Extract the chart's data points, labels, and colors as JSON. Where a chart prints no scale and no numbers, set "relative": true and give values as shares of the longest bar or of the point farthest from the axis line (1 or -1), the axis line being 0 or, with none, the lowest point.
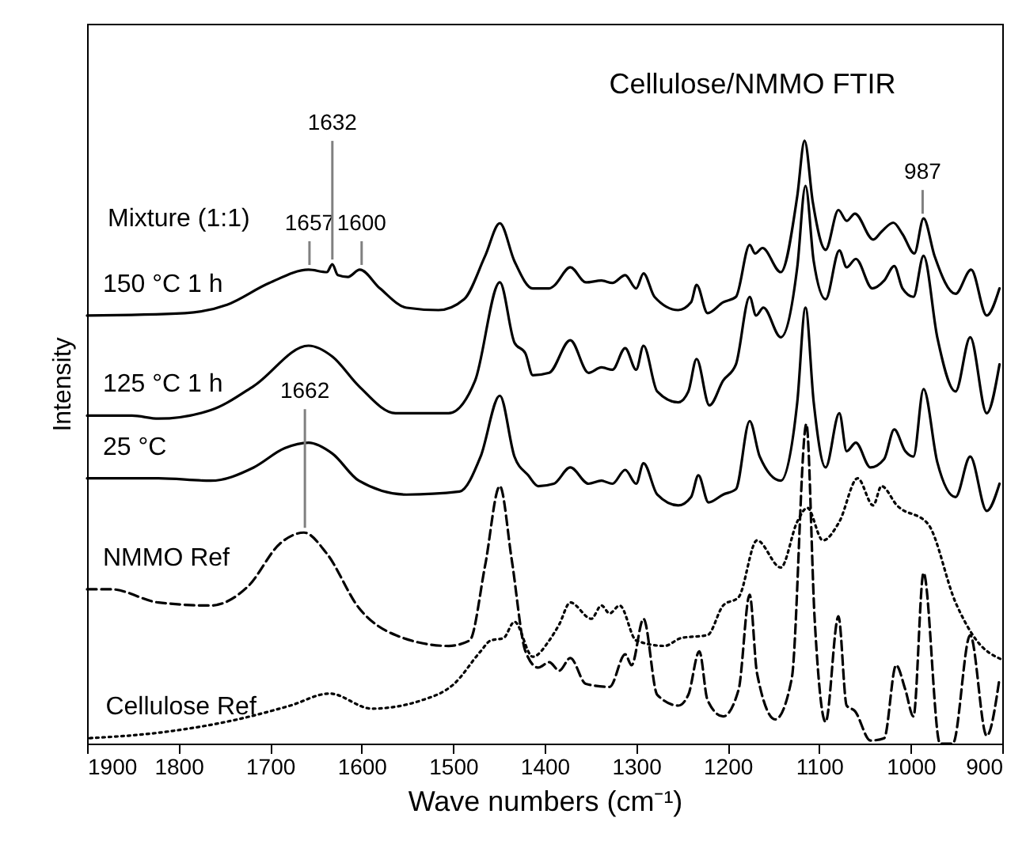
{
  "chart_data": {
    "type": "line",
    "title": "Cellulose/NMMO FTIR",
    "xlabel": "Wave numbers (cm⁻¹)",
    "ylabel": "Intensity",
    "relative": true,
    "grid": false,
    "xlim": [
      1900,
      900
    ],
    "xticks": [
      1900,
      1800,
      1700,
      1600,
      1500,
      1400,
      1300,
      1200,
      1100,
      1000,
      900
    ],
    "series": [
      {
        "name": "150 °C 1 h",
        "color": "#000000",
        "line_style": "solid",
        "x": [
          1900,
          1793,
          1747,
          1701,
          1658,
          1638,
          1632,
          1626,
          1615,
          1602,
          1580,
          1551,
          1516,
          1488,
          1465,
          1449,
          1433,
          1413,
          1395,
          1390,
          1372,
          1355,
          1338,
          1326,
          1312,
          1300,
          1292,
          1280,
          1254,
          1240,
          1234,
          1222,
          1205,
          1191,
          1176,
          1170,
          1162,
          1142,
          1124,
          1116,
          1107,
          1093,
          1079,
          1070,
          1061,
          1041,
          1032,
          1019,
          1009,
          996,
          986,
          974,
          951,
          934,
          917,
          903
        ],
        "values": [
          0.71,
          0.714,
          0.728,
          0.764,
          0.786,
          0.782,
          0.795,
          0.777,
          0.774,
          0.786,
          0.755,
          0.723,
          0.719,
          0.737,
          0.809,
          0.863,
          0.8,
          0.755,
          0.755,
          0.759,
          0.79,
          0.765,
          0.768,
          0.764,
          0.777,
          0.755,
          0.78,
          0.741,
          0.719,
          0.732,
          0.761,
          0.714,
          0.732,
          0.741,
          0.827,
          0.813,
          0.822,
          0.782,
          0.908,
          1.0,
          0.898,
          0.819,
          0.885,
          0.867,
          0.879,
          0.836,
          0.849,
          0.864,
          0.845,
          0.813,
          0.871,
          0.809,
          0.746,
          0.786,
          0.71,
          0.755
        ]
      },
      {
        "name": "125 °C 1 h",
        "color": "#000000",
        "line_style": "solid",
        "x": [
          1900,
          1851,
          1822,
          1765,
          1718,
          1658,
          1632,
          1603,
          1563,
          1505,
          1476,
          1449,
          1433,
          1421,
          1413,
          1395,
          1372,
          1352,
          1338,
          1326,
          1312,
          1300,
          1292,
          1277,
          1254,
          1243,
          1234,
          1220,
          1205,
          1191,
          1176,
          1169,
          1161,
          1142,
          1124,
          1115,
          1106,
          1093,
          1078,
          1070,
          1060,
          1042,
          1029,
          1018,
          1009,
          997,
          986,
          971,
          951,
          935,
          917,
          903
        ],
        "values": [
          0.544,
          0.544,
          0.539,
          0.553,
          0.593,
          0.66,
          0.642,
          0.593,
          0.548,
          0.548,
          0.602,
          0.765,
          0.665,
          0.647,
          0.611,
          0.615,
          0.669,
          0.615,
          0.624,
          0.62,
          0.656,
          0.62,
          0.66,
          0.584,
          0.566,
          0.584,
          0.638,
          0.561,
          0.602,
          0.629,
          0.741,
          0.71,
          0.723,
          0.674,
          0.79,
          0.925,
          0.8,
          0.737,
          0.818,
          0.79,
          0.804,
          0.755,
          0.768,
          0.792,
          0.755,
          0.741,
          0.809,
          0.674,
          0.584,
          0.674,
          0.548,
          0.629
        ]
      },
      {
        "name": "25 °C",
        "color": "#000000",
        "line_style": "solid",
        "x": [
          1900,
          1822,
          1765,
          1718,
          1684,
          1658,
          1632,
          1603,
          1551,
          1493,
          1470,
          1449,
          1433,
          1418,
          1407,
          1390,
          1372,
          1352,
          1338,
          1326,
          1312,
          1300,
          1292,
          1277,
          1254,
          1240,
          1232,
          1221,
          1205,
          1191,
          1176,
          1165,
          1142,
          1124,
          1115,
          1106,
          1093,
          1078,
          1070,
          1060,
          1044,
          1029,
          1018,
          1006,
          997,
          986,
          971,
          951,
          935,
          917,
          903
        ],
        "values": [
          0.44,
          0.44,
          0.436,
          0.458,
          0.49,
          0.499,
          0.481,
          0.436,
          0.413,
          0.418,
          0.476,
          0.577,
          0.476,
          0.445,
          0.427,
          0.431,
          0.458,
          0.431,
          0.436,
          0.431,
          0.454,
          0.431,
          0.465,
          0.413,
          0.395,
          0.409,
          0.445,
          0.4,
          0.413,
          0.422,
          0.535,
          0.476,
          0.436,
          0.566,
          0.723,
          0.566,
          0.458,
          0.548,
          0.485,
          0.499,
          0.458,
          0.472,
          0.521,
          0.485,
          0.476,
          0.588,
          0.467,
          0.409,
          0.476,
          0.386,
          0.431
        ]
      },
      {
        "name": "NMMO Ref",
        "color": "#000000",
        "line_style": "dashed",
        "x": [
          1900,
          1874,
          1822,
          1765,
          1724,
          1689,
          1663,
          1638,
          1603,
          1563,
          1505,
          1482,
          1465,
          1449,
          1436,
          1421,
          1407,
          1395,
          1384,
          1372,
          1355,
          1329,
          1312,
          1305,
          1292,
          1277,
          1254,
          1243,
          1231,
          1222,
          1205,
          1188,
          1176,
          1168,
          1148,
          1130,
          1114,
          1105,
          1093,
          1079,
          1070,
          1061,
          1044,
          1029,
          1016,
          1006,
          997,
          986,
          968,
          954,
          935,
          917,
          903
        ],
        "values": [
          0.256,
          0.256,
          0.234,
          0.229,
          0.261,
          0.332,
          0.35,
          0.315,
          0.225,
          0.18,
          0.162,
          0.171,
          0.296,
          0.427,
          0.305,
          0.153,
          0.126,
          0.135,
          0.121,
          0.142,
          0.099,
          0.094,
          0.148,
          0.13,
          0.207,
          0.081,
          0.063,
          0.081,
          0.153,
          0.072,
          0.045,
          0.09,
          0.247,
          0.117,
          0.04,
          0.108,
          0.53,
          0.207,
          0.036,
          0.211,
          0.063,
          0.054,
          0.005,
          0.009,
          0.13,
          0.09,
          0.045,
          0.283,
          0,
          0,
          0.18,
          0.013,
          0.108
        ]
      },
      {
        "name": "Cellulose Ref",
        "color": "#000000",
        "line_style": "dotted",
        "x": [
          1897,
          1822,
          1736,
          1678,
          1635,
          1589,
          1534,
          1499,
          1470,
          1459,
          1445,
          1433,
          1413,
          1395,
          1384,
          1372,
          1349,
          1338,
          1329,
          1318,
          1300,
          1269,
          1251,
          1222,
          1205,
          1188,
          1168,
          1142,
          1124,
          1113,
          1096,
          1078,
          1058,
          1041,
          1032,
          1015,
          981,
          951,
          928,
          900
        ],
        "values": [
          0.009,
          0.018,
          0.04,
          0.063,
          0.083,
          0.058,
          0.072,
          0.099,
          0.153,
          0.171,
          0.175,
          0.202,
          0.144,
          0.171,
          0.198,
          0.234,
          0.207,
          0.229,
          0.216,
          0.229,
          0.171,
          0.162,
          0.175,
          0.18,
          0.229,
          0.243,
          0.337,
          0.292,
          0.368,
          0.391,
          0.337,
          0.368,
          0.44,
          0.395,
          0.427,
          0.395,
          0.364,
          0.234,
          0.171,
          0.139
        ]
      }
    ],
    "annotations": [
      "Mixture (1:1)",
      {
        "text": "1657",
        "x": 1657,
        "y": 0.786
      },
      {
        "text": "1600",
        "x": 1600,
        "y": 0.786
      },
      {
        "text": "1632",
        "x": 1632,
        "y": 0.795
      },
      {
        "text": "987",
        "x": 987,
        "y": 0.871
      },
      {
        "text": "1662",
        "x": 1662,
        "y": 0.35
      }
    ]
  }
}
